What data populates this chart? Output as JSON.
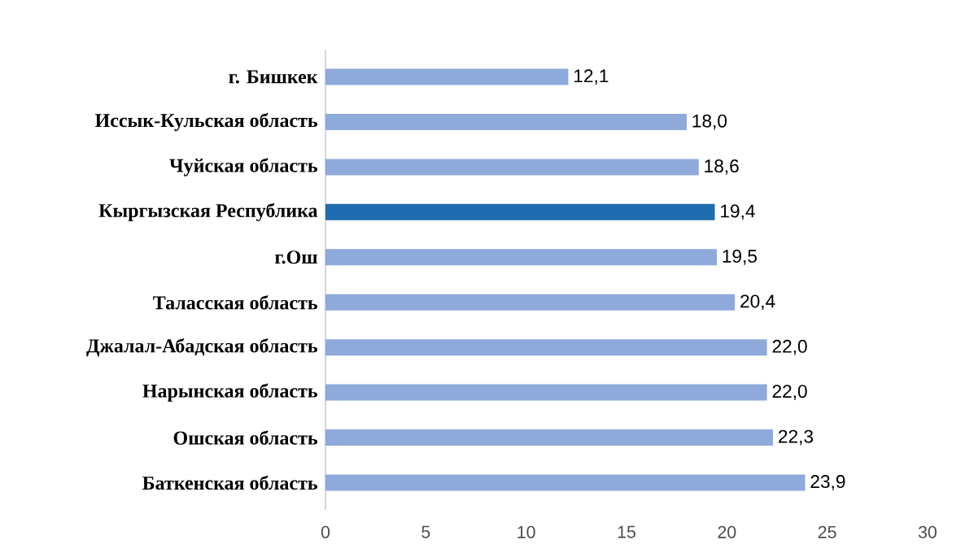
{
  "chart_data": {
    "type": "bar",
    "orientation": "horizontal",
    "categories": [
      "г. Бишкек",
      "Иссык-Кульская область",
      "Чуйская область",
      "Кыргызская Республика",
      "г.Ош",
      "Таласская область",
      "Джалал-Абадская область",
      "Нарынская область",
      "Ошская область",
      "Баткенская область"
    ],
    "values": [
      12.1,
      18.0,
      18.6,
      19.4,
      19.5,
      20.4,
      22.0,
      22.0,
      22.3,
      23.9
    ],
    "value_labels": [
      "12,1",
      "18,0",
      "18,6",
      "19,4",
      "19,5",
      "20,4",
      "22,0",
      "22,0",
      "22,3",
      "23,9"
    ],
    "colors": [
      "#8eaadb",
      "#8eaadb",
      "#8eaadb",
      "#1f6db0",
      "#8eaadb",
      "#8eaadb",
      "#8eaadb",
      "#8eaadb",
      "#8eaadb",
      "#8eaadb"
    ],
    "xlim": [
      0,
      30
    ],
    "xticks": [
      0,
      5,
      10,
      15,
      20,
      25,
      30
    ]
  }
}
